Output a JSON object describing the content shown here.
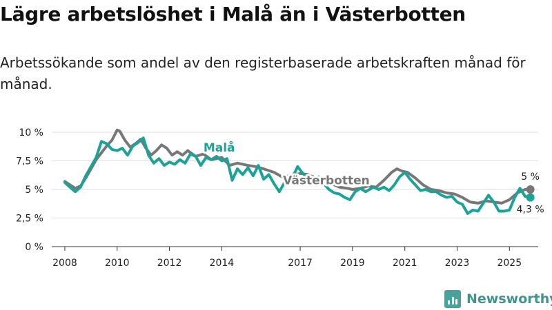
{
  "title": "Lägre arbetslöshet i Malå än i Västerbotten",
  "subtitle": "Arbetssökande som andel av den registerbaserade arbetskraften månad för månad.",
  "brand": "Newsworthy",
  "colors": {
    "mala": "#1aa396",
    "vasterbotten": "#777777"
  },
  "chart_data": {
    "type": "line",
    "ylim": [
      0,
      10
    ],
    "xlim": [
      2007.5,
      2026.1
    ],
    "y_ticks": [
      {
        "value": 0,
        "label": "0 %"
      },
      {
        "value": 2.5,
        "label": "2,5 %"
      },
      {
        "value": 5,
        "label": "5 %"
      },
      {
        "value": 7.5,
        "label": "7,5 %"
      },
      {
        "value": 10,
        "label": "10 %"
      }
    ],
    "x_ticks": [
      {
        "value": 2008,
        "label": "2008"
      },
      {
        "value": 2010,
        "label": "2010"
      },
      {
        "value": 2012,
        "label": "2012"
      },
      {
        "value": 2014,
        "label": "2014"
      },
      {
        "value": 2017,
        "label": "2017"
      },
      {
        "value": 2019,
        "label": "2019"
      },
      {
        "value": 2021,
        "label": "2021"
      },
      {
        "value": 2023,
        "label": "2023"
      },
      {
        "value": 2025,
        "label": "2025"
      }
    ],
    "series": [
      {
        "name": "Västerbotten",
        "label": "Västerbotten",
        "color": "#777777",
        "end_label": "5 %",
        "points": [
          [
            2008.0,
            5.7
          ],
          [
            2008.2,
            5.4
          ],
          [
            2008.4,
            5.1
          ],
          [
            2008.6,
            5.3
          ],
          [
            2008.8,
            6.0
          ],
          [
            2009.0,
            6.8
          ],
          [
            2009.2,
            7.6
          ],
          [
            2009.4,
            8.2
          ],
          [
            2009.6,
            8.8
          ],
          [
            2009.8,
            9.3
          ],
          [
            2010.0,
            10.2
          ],
          [
            2010.1,
            10.1
          ],
          [
            2010.3,
            9.3
          ],
          [
            2010.5,
            8.7
          ],
          [
            2010.7,
            9.0
          ],
          [
            2010.9,
            9.4
          ],
          [
            2011.1,
            8.6
          ],
          [
            2011.3,
            8.0
          ],
          [
            2011.5,
            8.4
          ],
          [
            2011.7,
            8.9
          ],
          [
            2011.9,
            8.6
          ],
          [
            2012.1,
            8.0
          ],
          [
            2012.3,
            8.3
          ],
          [
            2012.5,
            8.0
          ],
          [
            2012.7,
            8.4
          ],
          [
            2013.0,
            7.9
          ],
          [
            2013.3,
            8.1
          ],
          [
            2013.6,
            7.6
          ],
          [
            2014.0,
            7.8
          ],
          [
            2014.3,
            7.1
          ],
          [
            2014.6,
            7.3
          ],
          [
            2015.0,
            7.1
          ],
          [
            2015.3,
            7.0
          ],
          [
            2015.6,
            6.8
          ],
          [
            2016.0,
            6.5
          ],
          [
            2016.3,
            6.1
          ],
          [
            2016.6,
            6.2
          ],
          [
            2017.0,
            6.4
          ],
          [
            2017.3,
            6.3
          ],
          [
            2017.6,
            6.0
          ],
          [
            2017.9,
            5.9
          ],
          [
            2018.2,
            5.5
          ],
          [
            2018.5,
            5.2
          ],
          [
            2018.8,
            5.1
          ],
          [
            2019.0,
            5.0
          ],
          [
            2019.3,
            5.1
          ],
          [
            2019.6,
            5.3
          ],
          [
            2019.9,
            5.2
          ],
          [
            2020.2,
            5.8
          ],
          [
            2020.5,
            6.5
          ],
          [
            2020.7,
            6.8
          ],
          [
            2020.9,
            6.6
          ],
          [
            2021.1,
            6.5
          ],
          [
            2021.4,
            6.0
          ],
          [
            2021.7,
            5.4
          ],
          [
            2022.0,
            5.0
          ],
          [
            2022.3,
            4.9
          ],
          [
            2022.6,
            4.7
          ],
          [
            2022.9,
            4.6
          ],
          [
            2023.2,
            4.3
          ],
          [
            2023.5,
            3.9
          ],
          [
            2023.8,
            3.8
          ],
          [
            2024.1,
            4.0
          ],
          [
            2024.4,
            3.9
          ],
          [
            2024.7,
            3.8
          ],
          [
            2025.0,
            4.1
          ],
          [
            2025.3,
            4.7
          ],
          [
            2025.6,
            5.0
          ],
          [
            2025.8,
            5.0
          ]
        ]
      },
      {
        "name": "Malå",
        "label": "Malå",
        "color": "#1aa396",
        "end_label": "4,3 %",
        "points": [
          [
            2008.0,
            5.6
          ],
          [
            2008.2,
            5.2
          ],
          [
            2008.4,
            4.8
          ],
          [
            2008.6,
            5.2
          ],
          [
            2008.8,
            6.2
          ],
          [
            2009.0,
            7.0
          ],
          [
            2009.2,
            7.8
          ],
          [
            2009.4,
            9.2
          ],
          [
            2009.6,
            9.0
          ],
          [
            2009.8,
            8.5
          ],
          [
            2010.0,
            8.4
          ],
          [
            2010.2,
            8.6
          ],
          [
            2010.4,
            8.0
          ],
          [
            2010.6,
            8.8
          ],
          [
            2010.8,
            9.1
          ],
          [
            2011.0,
            9.5
          ],
          [
            2011.2,
            8.0
          ],
          [
            2011.4,
            7.3
          ],
          [
            2011.6,
            7.7
          ],
          [
            2011.8,
            7.1
          ],
          [
            2012.0,
            7.4
          ],
          [
            2012.2,
            7.2
          ],
          [
            2012.4,
            7.6
          ],
          [
            2012.6,
            7.3
          ],
          [
            2012.8,
            8.1
          ],
          [
            2013.0,
            7.9
          ],
          [
            2013.2,
            7.1
          ],
          [
            2013.4,
            7.8
          ],
          [
            2013.6,
            7.6
          ],
          [
            2013.8,
            7.9
          ],
          [
            2014.0,
            7.5
          ],
          [
            2014.2,
            7.7
          ],
          [
            2014.4,
            5.8
          ],
          [
            2014.6,
            6.8
          ],
          [
            2014.8,
            6.3
          ],
          [
            2015.0,
            6.9
          ],
          [
            2015.2,
            6.2
          ],
          [
            2015.4,
            7.1
          ],
          [
            2015.6,
            5.9
          ],
          [
            2015.8,
            6.3
          ],
          [
            2016.0,
            5.5
          ],
          [
            2016.2,
            4.8
          ],
          [
            2016.4,
            5.6
          ],
          [
            2016.6,
            5.9
          ],
          [
            2016.8,
            6.5
          ],
          [
            2016.9,
            7.0
          ],
          [
            2017.1,
            6.4
          ],
          [
            2017.3,
            6.0
          ],
          [
            2017.5,
            5.7
          ],
          [
            2017.7,
            6.1
          ],
          [
            2017.9,
            5.5
          ],
          [
            2018.1,
            5.0
          ],
          [
            2018.3,
            4.7
          ],
          [
            2018.5,
            4.6
          ],
          [
            2018.7,
            4.3
          ],
          [
            2018.9,
            4.1
          ],
          [
            2019.1,
            4.8
          ],
          [
            2019.3,
            5.1
          ],
          [
            2019.5,
            4.8
          ],
          [
            2019.8,
            5.2
          ],
          [
            2020.0,
            5.0
          ],
          [
            2020.2,
            5.2
          ],
          [
            2020.4,
            4.9
          ],
          [
            2020.6,
            5.4
          ],
          [
            2020.8,
            6.1
          ],
          [
            2021.0,
            6.5
          ],
          [
            2021.2,
            5.9
          ],
          [
            2021.4,
            5.4
          ],
          [
            2021.6,
            4.9
          ],
          [
            2021.8,
            5.0
          ],
          [
            2022.0,
            4.8
          ],
          [
            2022.2,
            4.8
          ],
          [
            2022.4,
            4.5
          ],
          [
            2022.6,
            4.3
          ],
          [
            2022.8,
            4.4
          ],
          [
            2023.0,
            3.9
          ],
          [
            2023.2,
            3.7
          ],
          [
            2023.4,
            2.9
          ],
          [
            2023.6,
            3.2
          ],
          [
            2023.8,
            3.1
          ],
          [
            2024.0,
            3.8
          ],
          [
            2024.2,
            4.5
          ],
          [
            2024.4,
            3.9
          ],
          [
            2024.6,
            3.1
          ],
          [
            2024.8,
            3.1
          ],
          [
            2025.0,
            3.2
          ],
          [
            2025.2,
            4.3
          ],
          [
            2025.4,
            5.1
          ],
          [
            2025.6,
            4.4
          ],
          [
            2025.8,
            4.3
          ]
        ]
      }
    ]
  }
}
